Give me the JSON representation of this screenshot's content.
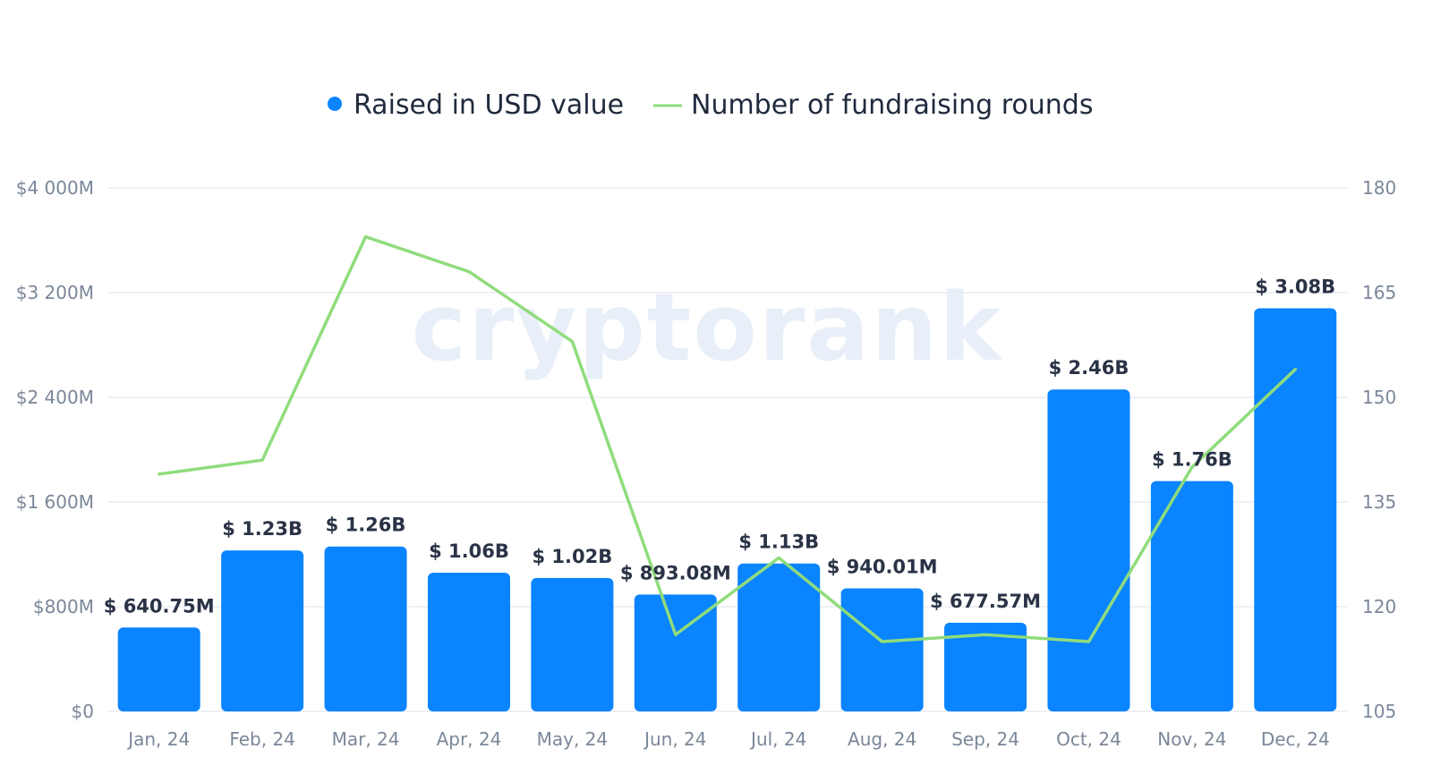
{
  "colors": {
    "bar": "#0a84ff",
    "line": "#8fdc7c",
    "grid": "#e8ecf2",
    "text_axis": "#7a8799",
    "text_label": "#2a3346"
  },
  "watermark": "cryptorank",
  "legend": [
    {
      "label": "Raised in USD value",
      "icon": "dot-marker-icon"
    },
    {
      "label": "Number of fundraising rounds",
      "icon": "line-marker-icon"
    }
  ],
  "chart_data": {
    "type": "bar",
    "categories": [
      "Jan, 24",
      "Feb, 24",
      "Mar, 24",
      "Apr, 24",
      "May, 24",
      "Jun, 24",
      "Jul, 24",
      "Aug, 24",
      "Sep, 24",
      "Oct, 24",
      "Nov, 24",
      "Dec, 24"
    ],
    "series": [
      {
        "name": "Raised in USD value",
        "type": "bar",
        "axis": "left",
        "values": [
          640.75,
          1230,
          1260,
          1060,
          1020,
          893.08,
          1130,
          940.01,
          677.57,
          2460,
          1760,
          3080
        ],
        "labels": [
          "$ 640.75M",
          "$ 1.23B",
          "$ 1.26B",
          "$ 1.06B",
          "$ 1.02B",
          "$ 893.08M",
          "$ 1.13B",
          "$ 940.01M",
          "$ 677.57M",
          "$ 2.46B",
          "$ 1.76B",
          "$ 3.08B"
        ]
      },
      {
        "name": "Number of fundraising rounds",
        "type": "line",
        "axis": "right",
        "values": [
          139,
          141,
          173,
          168,
          158,
          116,
          127,
          115,
          116,
          115,
          140,
          154
        ]
      }
    ],
    "y_left": {
      "ylim": [
        0,
        4000
      ],
      "ticks": [
        0,
        800,
        1600,
        2400,
        3200,
        4000
      ],
      "tick_labels": [
        "$0",
        "$800M",
        "$1 600M",
        "$2 400M",
        "$3 200M",
        "$4 000M"
      ]
    },
    "y_right": {
      "ylim": [
        105,
        180
      ],
      "ticks": [
        105,
        120,
        135,
        150,
        165,
        180
      ],
      "tick_labels": [
        "105",
        "120",
        "135",
        "150",
        "165",
        "180"
      ]
    },
    "grid": true,
    "legend_position": "top-center"
  }
}
